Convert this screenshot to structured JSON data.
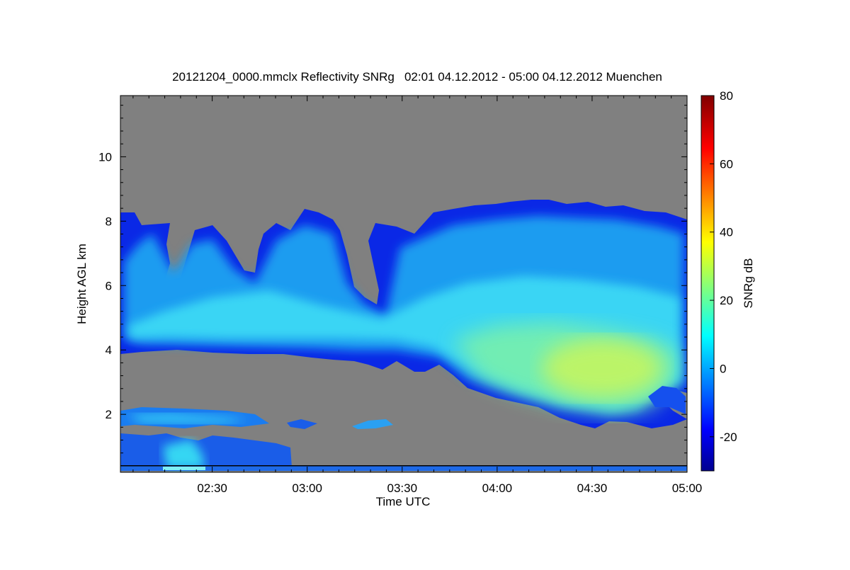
{
  "chart_data": {
    "type": "heatmap",
    "title": "20121204_0000.mmclx Reflectivity SNRg   02:01 04.12.2012 - 05:00 04.12.2012 Muenchen",
    "xlabel": "Time UTC",
    "ylabel": "Height AGL km",
    "x_range": [
      "02:01",
      "05:00"
    ],
    "y_range_km": [
      0.2,
      11.9
    ],
    "x_ticks": [
      "02:30",
      "03:00",
      "03:30",
      "04:00",
      "04:30",
      "05:00"
    ],
    "y_ticks": [
      "2",
      "4",
      "6",
      "8",
      "10"
    ],
    "colorbar": {
      "label": "SNRg dB",
      "range": [
        -30,
        80
      ],
      "ticks": [
        "-20",
        "0",
        "20",
        "40",
        "60",
        "80"
      ],
      "colormap": "jet"
    },
    "no_signal_color": "#808080",
    "features": {
      "upper_cloud": {
        "base_km": [
          3.8,
          3.9,
          3.9,
          3.8,
          3.4,
          2.7,
          2.2,
          1.7,
          1.5,
          2.2
        ],
        "top_km": [
          8.3,
          7.8,
          8.3,
          7.8,
          7.8,
          8.4,
          8.7,
          8.5,
          8.1,
          7.8
        ],
        "max_snr_db": 33
      },
      "low_cloud": {
        "height_km": [
          1.2,
          2.2
        ],
        "time_range": [
          "02:01",
          "03:00"
        ]
      }
    }
  }
}
